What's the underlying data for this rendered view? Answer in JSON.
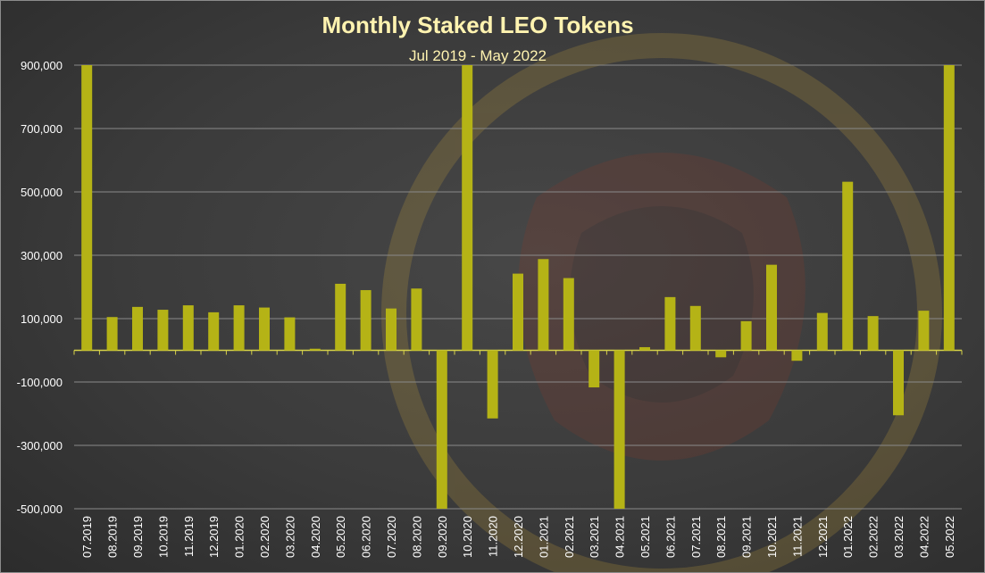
{
  "chart_data": {
    "type": "bar",
    "title": "Monthly Staked LEO Tokens",
    "subtitle": "Jul 2019 - May 2022",
    "xlabel": "",
    "ylabel": "",
    "ylim": [
      -500000,
      900000
    ],
    "yticks": [
      "900,000",
      "700,000",
      "500,000",
      "300,000",
      "100,000",
      "-100,000",
      "-300,000",
      "-500,000"
    ],
    "ytick_values": [
      900000,
      700000,
      500000,
      300000,
      100000,
      -100000,
      -300000,
      -500000
    ],
    "grid": true,
    "legend": "none",
    "bar_color": "#b5b316",
    "categories": [
      "07.2019",
      "08.2019",
      "09.2019",
      "10.2019",
      "11.2019",
      "12.2019",
      "01.2020",
      "02.2020",
      "03.2020",
      "04.2020",
      "05.2020",
      "06.2020",
      "07.2020",
      "08.2020",
      "09.2020",
      "10.2020",
      "11.2020",
      "12.2020",
      "01.2021",
      "02.2021",
      "03.2021",
      "04.2021",
      "05.2021",
      "06.2021",
      "07.2021",
      "08.2021",
      "09.2021",
      "10.2021",
      "11.2021",
      "12.2021",
      "01.2022",
      "02.2022",
      "03.2022",
      "04.2022",
      "05.2022"
    ],
    "values": [
      900000,
      105000,
      137000,
      128000,
      142000,
      120000,
      142000,
      135000,
      104000,
      5000,
      210000,
      190000,
      132000,
      195000,
      -500000,
      900000,
      -215000,
      242000,
      288000,
      228000,
      -117000,
      -500000,
      10000,
      168000,
      140000,
      -22000,
      92000,
      270000,
      -33000,
      118000,
      532000,
      108000,
      -205000,
      125000,
      900000
    ]
  }
}
